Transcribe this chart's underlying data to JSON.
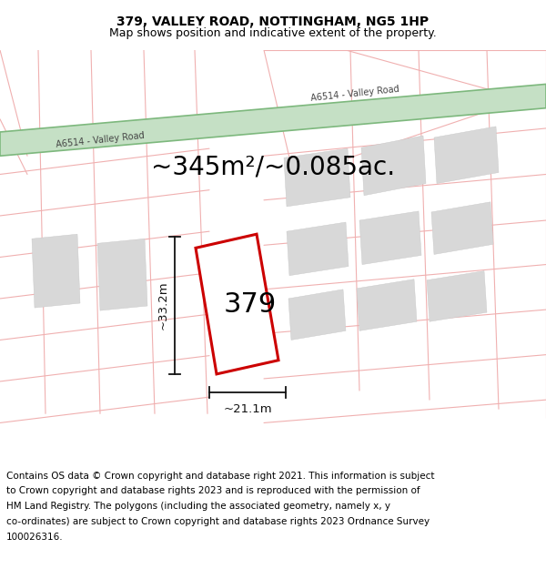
{
  "title_line1": "379, VALLEY ROAD, NOTTINGHAM, NG5 1HP",
  "title_line2": "Map shows position and indicative extent of the property.",
  "area_text": "~345m²/~0.085ac.",
  "plot_number": "379",
  "dim_width": "~21.1m",
  "dim_height": "~33.2m",
  "bg_color": "#ffffff",
  "road_color_green": "#7db87d",
  "road_fill_green": "#c5e0c5",
  "road_text_color": "#444444",
  "plot_outline_color": "#cc0000",
  "neighbor_fill": "#d8d8d8",
  "road_lines_color": "#f0b0b0",
  "dim_line_color": "#111111",
  "footer_line1": "Contains OS data © Crown copyright and database right 2021. This information is subject",
  "footer_line2": "to Crown copyright and database rights 2023 and is reproduced with the permission of",
  "footer_line3": "HM Land Registry. The polygons (including the associated geometry, namely x, y",
  "footer_line4": "co-ordinates) are subject to Crown copyright and database rights 2023 Ordnance Survey",
  "footer_line5": "100026316.",
  "footer_fontsize": 7.5,
  "title_fontsize": 10,
  "subtitle_fontsize": 9,
  "area_fontsize": 20,
  "plot_num_fontsize": 22,
  "dim_fontsize": 9.5,
  "road_label_fontsize": 7
}
